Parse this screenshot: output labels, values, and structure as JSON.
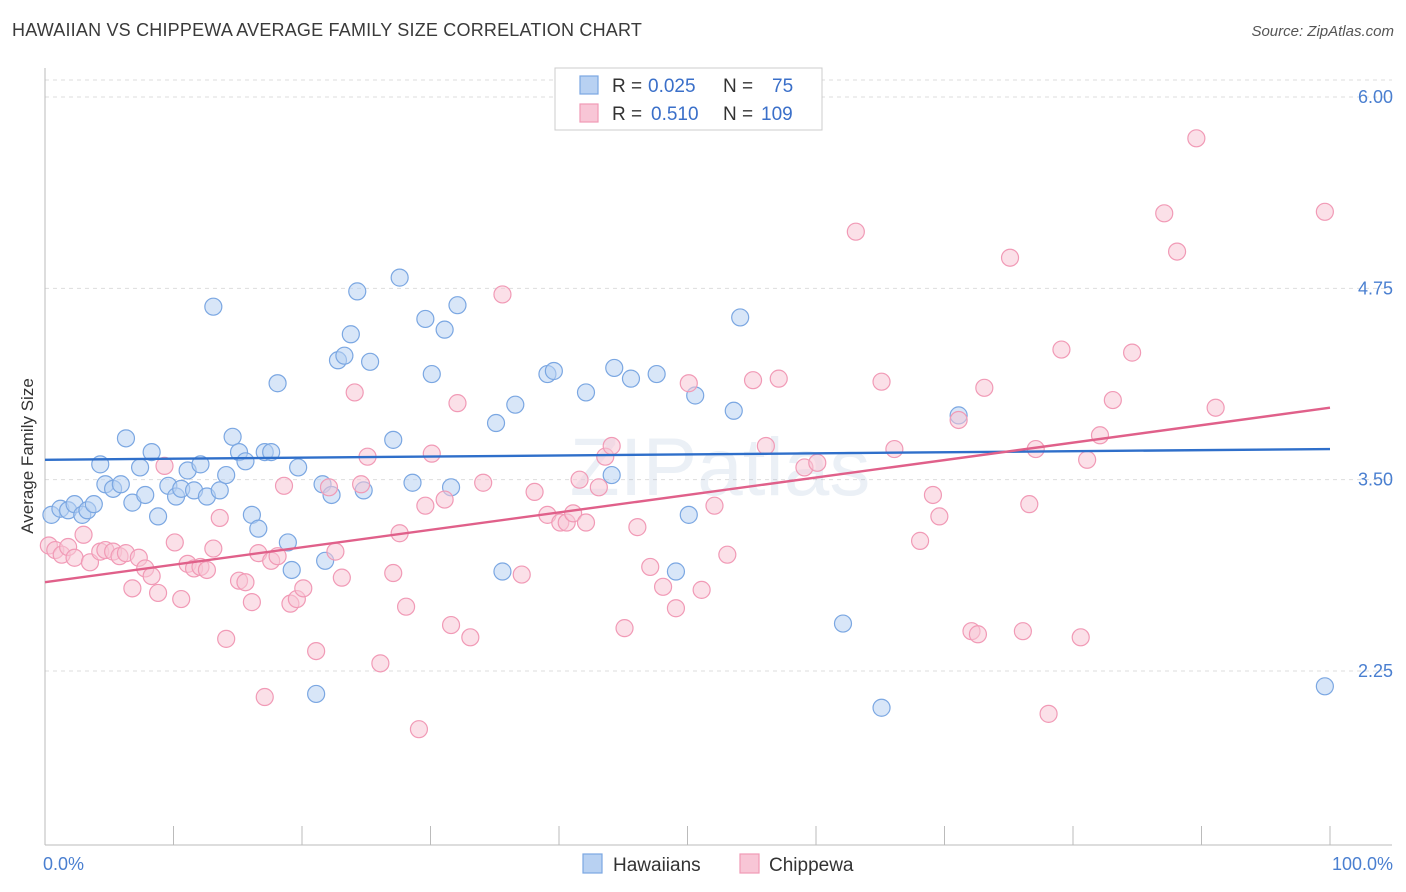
{
  "title": "HAWAIIAN VS CHIPPEWA AVERAGE FAMILY SIZE CORRELATION CHART",
  "source": "Source: ZipAtlas.com",
  "watermark": "ZIPatlas",
  "legend": {
    "rows": [
      {
        "r_label": "R =",
        "r_value": "0.025",
        "n_label": "N =",
        "n_value": "75"
      },
      {
        "r_label": "R =",
        "r_value": "0.510",
        "n_label": "N =",
        "n_value": "109"
      }
    ]
  },
  "chart_data": {
    "type": "scatter",
    "xlabel": "",
    "ylabel": "Average Family Size",
    "x_tick_labels": [
      "0.0%",
      "100.0%"
    ],
    "y_tick_labels": [
      "2.25",
      "3.50",
      "4.75",
      "6.00"
    ],
    "y_ticks": [
      2.25,
      3.5,
      4.75,
      6.0
    ],
    "xlim": [
      0,
      100
    ],
    "ylim": [
      1.2,
      6.2
    ],
    "grid": true,
    "colors": {
      "hawaiians": "#7ba7e2",
      "chippewa": "#f19ab6",
      "hawaiians_line": "#2f6fca",
      "chippewa_line": "#e0608a"
    },
    "series": [
      {
        "name": "Hawaiians",
        "trend": {
          "x0": 0,
          "y0": 3.63,
          "x1": 100,
          "y1": 3.7
        },
        "points": [
          [
            0.5,
            3.27
          ],
          [
            1.2,
            3.31
          ],
          [
            1.8,
            3.3
          ],
          [
            2.3,
            3.34
          ],
          [
            2.9,
            3.27
          ],
          [
            3.3,
            3.3
          ],
          [
            3.8,
            3.34
          ],
          [
            4.3,
            3.6
          ],
          [
            4.7,
            3.47
          ],
          [
            5.3,
            3.44
          ],
          [
            5.9,
            3.47
          ],
          [
            6.3,
            3.77
          ],
          [
            6.8,
            3.35
          ],
          [
            7.4,
            3.58
          ],
          [
            7.8,
            3.4
          ],
          [
            8.3,
            3.68
          ],
          [
            8.8,
            3.26
          ],
          [
            9.6,
            3.46
          ],
          [
            10.2,
            3.39
          ],
          [
            10.6,
            3.44
          ],
          [
            11.1,
            3.56
          ],
          [
            11.6,
            3.43
          ],
          [
            12.1,
            3.6
          ],
          [
            12.6,
            3.39
          ],
          [
            13.1,
            4.63
          ],
          [
            13.6,
            3.43
          ],
          [
            14.1,
            3.53
          ],
          [
            14.6,
            3.78
          ],
          [
            15.1,
            3.68
          ],
          [
            15.6,
            3.62
          ],
          [
            16.1,
            3.27
          ],
          [
            16.6,
            3.18
          ],
          [
            17.1,
            3.68
          ],
          [
            17.6,
            3.68
          ],
          [
            18.1,
            4.13
          ],
          [
            18.9,
            3.09
          ],
          [
            19.2,
            2.91
          ],
          [
            19.7,
            3.58
          ],
          [
            21.1,
            2.1
          ],
          [
            21.6,
            3.47
          ],
          [
            21.8,
            2.97
          ],
          [
            22.3,
            3.4
          ],
          [
            22.8,
            4.28
          ],
          [
            23.3,
            4.31
          ],
          [
            23.8,
            4.45
          ],
          [
            24.3,
            4.73
          ],
          [
            24.8,
            3.43
          ],
          [
            25.3,
            4.27
          ],
          [
            27.1,
            3.76
          ],
          [
            27.6,
            4.82
          ],
          [
            28.6,
            3.48
          ],
          [
            29.6,
            4.55
          ],
          [
            30.1,
            4.19
          ],
          [
            31.1,
            4.48
          ],
          [
            31.6,
            3.45
          ],
          [
            32.1,
            4.64
          ],
          [
            35.1,
            3.87
          ],
          [
            36.6,
            3.99
          ],
          [
            39.1,
            4.19
          ],
          [
            39.6,
            4.21
          ],
          [
            42.1,
            4.07
          ],
          [
            44.1,
            3.53
          ],
          [
            44.3,
            4.23
          ],
          [
            45.6,
            4.16
          ],
          [
            47.6,
            4.19
          ],
          [
            49.1,
            2.9
          ],
          [
            50.1,
            3.27
          ],
          [
            50.6,
            4.05
          ],
          [
            53.6,
            3.95
          ],
          [
            54.1,
            4.56
          ],
          [
            62.1,
            2.56
          ],
          [
            65.1,
            2.01
          ],
          [
            71.1,
            3.92
          ],
          [
            99.6,
            2.15
          ],
          [
            35.6,
            2.9
          ]
        ]
      },
      {
        "name": "Chippewa",
        "trend": {
          "x0": 0,
          "y0": 2.83,
          "x1": 100,
          "y1": 3.97
        },
        "points": [
          [
            0.3,
            3.07
          ],
          [
            0.8,
            3.04
          ],
          [
            1.3,
            3.01
          ],
          [
            1.8,
            3.06
          ],
          [
            2.3,
            2.99
          ],
          [
            3.0,
            3.14
          ],
          [
            3.5,
            2.96
          ],
          [
            4.3,
            3.03
          ],
          [
            4.7,
            3.04
          ],
          [
            5.3,
            3.03
          ],
          [
            5.8,
            3.0
          ],
          [
            6.3,
            3.02
          ],
          [
            6.8,
            2.79
          ],
          [
            7.3,
            2.99
          ],
          [
            7.8,
            2.92
          ],
          [
            8.3,
            2.87
          ],
          [
            8.8,
            2.76
          ],
          [
            9.3,
            3.59
          ],
          [
            10.1,
            3.09
          ],
          [
            10.6,
            2.72
          ],
          [
            11.1,
            2.95
          ],
          [
            11.6,
            2.92
          ],
          [
            12.1,
            2.93
          ],
          [
            12.6,
            2.91
          ],
          [
            13.1,
            3.05
          ],
          [
            13.6,
            3.25
          ],
          [
            14.1,
            2.46
          ],
          [
            15.1,
            2.84
          ],
          [
            15.6,
            2.83
          ],
          [
            16.1,
            2.7
          ],
          [
            16.6,
            3.02
          ],
          [
            17.1,
            2.08
          ],
          [
            17.6,
            2.97
          ],
          [
            18.1,
            3.0
          ],
          [
            18.6,
            3.46
          ],
          [
            19.1,
            2.69
          ],
          [
            19.6,
            2.72
          ],
          [
            20.1,
            2.79
          ],
          [
            21.1,
            2.38
          ],
          [
            22.1,
            3.45
          ],
          [
            22.6,
            3.03
          ],
          [
            23.1,
            2.86
          ],
          [
            24.1,
            4.07
          ],
          [
            24.6,
            3.47
          ],
          [
            25.1,
            3.65
          ],
          [
            26.1,
            2.3
          ],
          [
            27.1,
            2.89
          ],
          [
            27.6,
            3.15
          ],
          [
            28.1,
            2.67
          ],
          [
            29.1,
            1.87
          ],
          [
            29.6,
            3.33
          ],
          [
            30.1,
            3.67
          ],
          [
            31.1,
            3.37
          ],
          [
            31.6,
            2.55
          ],
          [
            32.1,
            4.0
          ],
          [
            33.1,
            2.47
          ],
          [
            34.1,
            3.48
          ],
          [
            35.6,
            4.71
          ],
          [
            37.1,
            2.88
          ],
          [
            38.1,
            3.42
          ],
          [
            39.1,
            3.27
          ],
          [
            40.1,
            3.22
          ],
          [
            40.6,
            3.22
          ],
          [
            41.1,
            3.28
          ],
          [
            41.6,
            3.5
          ],
          [
            42.1,
            3.22
          ],
          [
            43.1,
            3.45
          ],
          [
            43.6,
            3.65
          ],
          [
            44.1,
            3.72
          ],
          [
            45.1,
            2.53
          ],
          [
            46.1,
            3.19
          ],
          [
            47.1,
            2.93
          ],
          [
            48.1,
            2.8
          ],
          [
            49.1,
            2.66
          ],
          [
            50.1,
            4.13
          ],
          [
            51.1,
            2.78
          ],
          [
            52.1,
            3.33
          ],
          [
            53.1,
            3.01
          ],
          [
            55.1,
            4.15
          ],
          [
            56.1,
            3.72
          ],
          [
            57.1,
            4.16
          ],
          [
            59.1,
            3.58
          ],
          [
            60.1,
            3.61
          ],
          [
            63.1,
            5.12
          ],
          [
            65.1,
            4.14
          ],
          [
            66.1,
            3.7
          ],
          [
            68.1,
            3.1
          ],
          [
            69.1,
            3.4
          ],
          [
            69.6,
            3.26
          ],
          [
            71.1,
            3.89
          ],
          [
            72.1,
            2.51
          ],
          [
            72.6,
            2.49
          ],
          [
            73.1,
            4.1
          ],
          [
            75.1,
            4.95
          ],
          [
            76.1,
            2.51
          ],
          [
            76.6,
            3.34
          ],
          [
            77.1,
            3.7
          ],
          [
            78.1,
            1.97
          ],
          [
            79.1,
            4.35
          ],
          [
            80.6,
            2.47
          ],
          [
            81.1,
            3.63
          ],
          [
            82.1,
            3.79
          ],
          [
            83.1,
            4.02
          ],
          [
            84.6,
            4.33
          ],
          [
            87.1,
            5.24
          ],
          [
            88.1,
            4.99
          ],
          [
            89.6,
            5.73
          ],
          [
            91.1,
            3.97
          ],
          [
            99.6,
            5.25
          ]
        ]
      }
    ]
  }
}
